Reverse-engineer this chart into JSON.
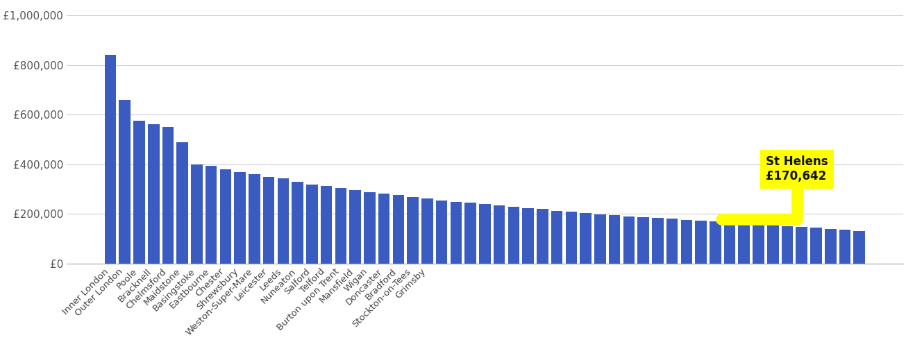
{
  "values": [
    840000,
    660000,
    575000,
    560000,
    550000,
    488000,
    400000,
    393000,
    380000,
    368000,
    360000,
    350000,
    343000,
    330000,
    318000,
    312000,
    303000,
    296000,
    288000,
    282000,
    275000,
    268000,
    262000,
    255000,
    249000,
    244000,
    239000,
    233000,
    228000,
    223000,
    219000,
    213000,
    208000,
    203000,
    198000,
    194000,
    190000,
    186000,
    183000,
    180000,
    176000,
    173000,
    170642,
    167000,
    163000,
    159000,
    155000,
    151000,
    148000,
    144000,
    140000,
    135000,
    130000
  ],
  "label_positions": {
    "0": "Inner London",
    "1": "Outer London",
    "2": "Poole",
    "3": "Bracknell",
    "4": "Chelmsford",
    "5": "Maidstone",
    "6": "Basingstoke",
    "7": "Eastbourne",
    "8": "Chester",
    "9": "Shrewsbury",
    "10": "Weston-Super-Mare",
    "11": "Leicester",
    "12": "Leeds",
    "13": "Nuneaton",
    "14": "Salford",
    "15": "Telford",
    "16": "Burton upon Trent",
    "17": "Mansfield",
    "18": "Wigan",
    "19": "Doncaster",
    "20": "Bradford",
    "21": "Stockton-on-Tees",
    "22": "Grimsby"
  },
  "highlight_index": 42,
  "highlight_label": "St Helens",
  "highlight_value": 170642,
  "bar_color": "#3a5bbf",
  "annotation_bg": "#ffff00",
  "annotation_fg": "#111111",
  "bg_color": "#ffffff",
  "grid_color": "#d0d0d0",
  "ylim": [
    0,
    1050000
  ],
  "yticks": [
    0,
    200000,
    400000,
    600000,
    800000,
    1000000
  ],
  "ytick_labels": [
    "£0",
    "£200,000",
    "£400,000",
    "£600,000",
    "£800,000",
    "£1,000,000"
  ]
}
